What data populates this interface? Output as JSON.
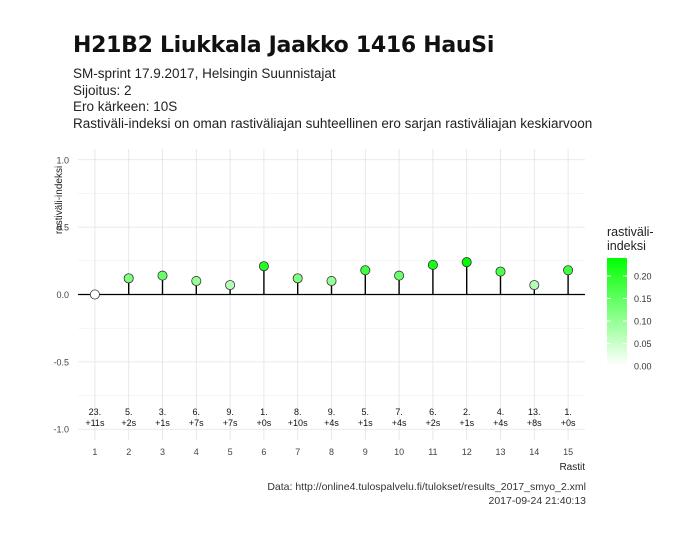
{
  "title": "H21B2 Liukkala Jaakko 1416 HauSi",
  "subtitle": {
    "line1": "SM-sprint 17.9.2017, Helsingin Suunnistajat",
    "line2": "Sijoitus: 2",
    "line3": "Ero kärkeen: 10S",
    "line4": "Rastiväli-indeksi on oman rastiväliajan suhteellinen ero sarjan rastiväliajan keskiarvoon"
  },
  "caption": {
    "source": "Data: http://online4.tulospalvelu.fi/tulokset/results_2017_smyo_2.xml",
    "timestamp": "2017-09-24 21:40:13"
  },
  "colors": {
    "low": "#ffffff",
    "high": "#00ff00",
    "grid": "#e3e3e3",
    "baseline": "#000000"
  },
  "chart_data": {
    "type": "lollipop",
    "xlabel": "Rastit",
    "ylabel": "rastiväli-indeksi",
    "ylim": [
      -1.08,
      1.08
    ],
    "y_ticks": [
      -1.0,
      -0.5,
      0.0,
      0.5,
      1.0
    ],
    "y_tick_labels": [
      "-1.0",
      "-0.5",
      "0.0",
      "0.5",
      "1.0"
    ],
    "x": [
      1,
      2,
      3,
      4,
      5,
      6,
      7,
      8,
      9,
      10,
      11,
      12,
      13,
      14,
      15
    ],
    "values": [
      0.0,
      0.12,
      0.14,
      0.1,
      0.07,
      0.21,
      0.12,
      0.1,
      0.18,
      0.14,
      0.22,
      0.24,
      0.17,
      0.07,
      0.18
    ],
    "rank_labels": [
      "23.",
      "5.",
      "3.",
      "6.",
      "9.",
      "1.",
      "8.",
      "9.",
      "5.",
      "7.",
      "6.",
      "2.",
      "4.",
      "13.",
      "1."
    ],
    "diff_labels": [
      "+11s",
      "+2s",
      "+1s",
      "+7s",
      "+7s",
      "+0s",
      "+10s",
      "+4s",
      "+1s",
      "+4s",
      "+2s",
      "+1s",
      "+4s",
      "+8s",
      "+0s"
    ],
    "grid": true,
    "legend": {
      "title_line1": "rastiväli-",
      "title_line2": "indeksi",
      "placement": "right",
      "range": [
        0.0,
        0.24
      ],
      "ticks": [
        0.0,
        0.05,
        0.1,
        0.15,
        0.2
      ],
      "tick_labels": [
        "0.00",
        "0.05",
        "0.10",
        "0.15",
        "0.20"
      ]
    }
  }
}
